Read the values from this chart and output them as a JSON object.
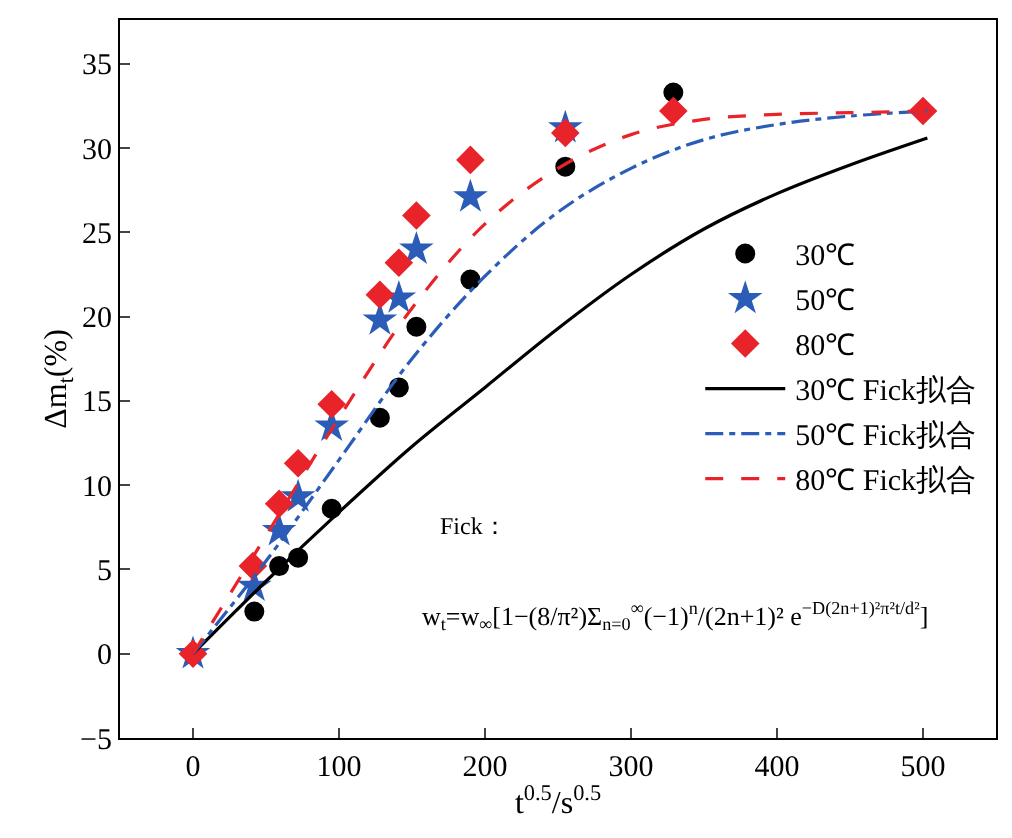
{
  "chart_data": {
    "type": "scatter",
    "xlabel": "t$^{0.5}$/s$^{0.5}$",
    "ylabel": "Δm$_{t}$(%)",
    "xlim": [
      -50,
      550
    ],
    "xticks": [
      0,
      100,
      200,
      300,
      400,
      500
    ],
    "ylim": [
      -5,
      37.6
    ],
    "yticks": [
      -5,
      0,
      5,
      10,
      15,
      20,
      25,
      30,
      35
    ],
    "legend": "right",
    "series": [
      {
        "name": "30℃",
        "marker": "circle",
        "color": "#000000",
        "x": [
          42,
          59,
          72,
          95,
          128,
          141,
          153,
          190,
          255,
          329
        ],
        "values": [
          2.5,
          5.2,
          5.7,
          8.6,
          14.0,
          15.8,
          19.4,
          22.2,
          28.9,
          33.3
        ]
      },
      {
        "name": "50℃",
        "marker": "star",
        "color": "#2b5cb8",
        "x": [
          0,
          42,
          59,
          72,
          95,
          128,
          141,
          153,
          190,
          255
        ],
        "values": [
          0,
          4.0,
          7.3,
          9.3,
          13.5,
          19.8,
          21.1,
          24.0,
          27.1,
          31.2
        ]
      },
      {
        "name": "80℃",
        "marker": "diamond",
        "color": "#e8242a",
        "x": [
          0,
          41,
          59,
          72,
          95,
          128,
          141,
          153,
          190,
          255,
          329,
          500
        ],
        "values": [
          0,
          5.2,
          8.9,
          11.3,
          14.8,
          21.3,
          23.2,
          26.0,
          29.3,
          30.9,
          32.2,
          32.2
        ]
      },
      {
        "name": "30℃ Fick拟合",
        "type": "line",
        "marker": "none",
        "line_style": "solid",
        "color": "#000000",
        "x": [
          0,
          50,
          100,
          150,
          200,
          250,
          300,
          350,
          400,
          450,
          503
        ],
        "values": [
          0,
          4.3,
          8.4,
          12.3,
          15.8,
          19.3,
          22.5,
          25.2,
          27.3,
          29.0,
          30.6
        ]
      },
      {
        "name": "50℃ Fick拟合",
        "type": "line",
        "marker": "none",
        "line_style": "dashdot",
        "color": "#2b5cb8",
        "x": [
          0,
          50,
          100,
          150,
          200,
          250,
          300,
          350,
          400,
          450,
          503
        ],
        "values": [
          0,
          5.5,
          11.5,
          17.5,
          22.4,
          26.2,
          28.8,
          30.5,
          31.4,
          31.9,
          32.2
        ]
      },
      {
        "name": "80℃ Fick拟合",
        "type": "line",
        "marker": "none",
        "line_style": "dashed",
        "color": "#e8242a",
        "x": [
          0,
          50,
          100,
          150,
          200,
          250,
          300,
          350,
          400,
          450,
          503
        ],
        "values": [
          0,
          7.0,
          14.0,
          20.5,
          25.5,
          28.8,
          30.8,
          31.7,
          32.0,
          32.1,
          32.2
        ]
      }
    ],
    "annotations": [
      "Fick：",
      "w$_{t}$=w$_{∞}$[1−(8/π²)Σ$_{n=0}$$^{∞}$(−1)$^{n}$/(2n+1)² e$^{−D(2n+1)²π²t/d²}$]"
    ]
  }
}
